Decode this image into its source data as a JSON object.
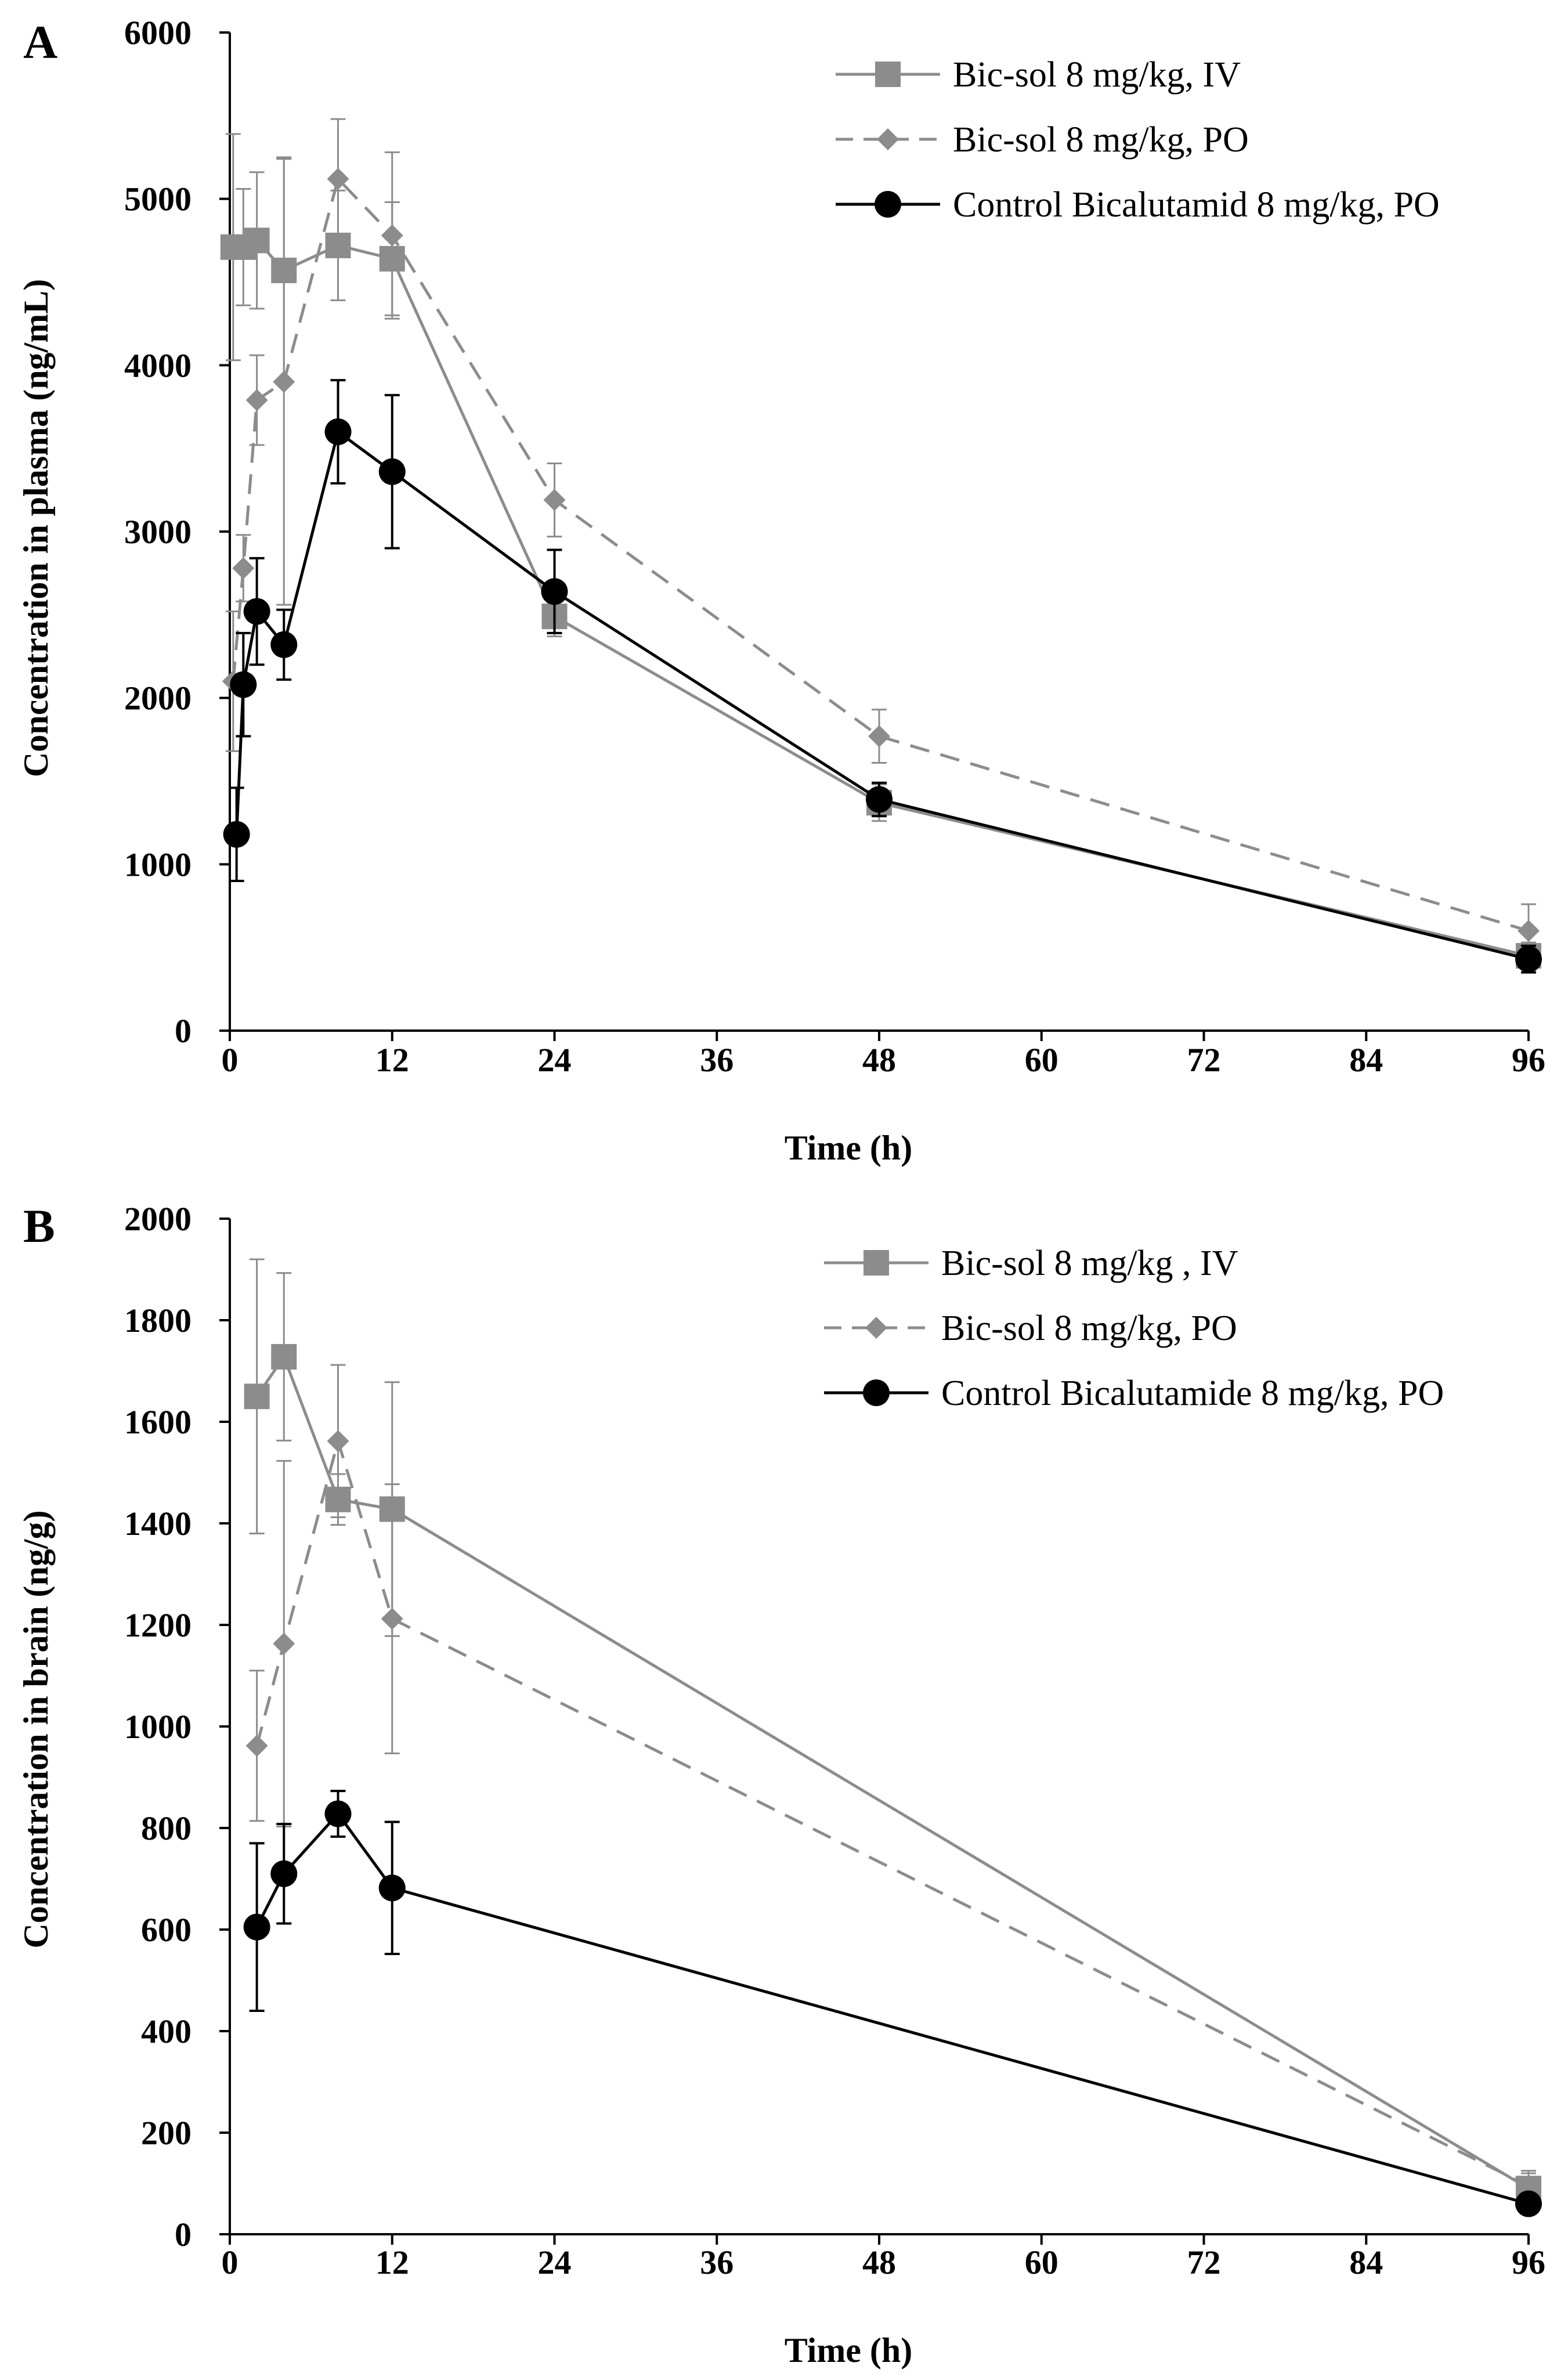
{
  "chart_data": [
    {
      "panel_label": "A",
      "type": "line",
      "xlabel": "Time (h)",
      "ylabel": "Concentration in plasma (ng/mL)",
      "xlim": [
        0,
        96
      ],
      "ylim": [
        0,
        6000
      ],
      "xticks": [
        0,
        12,
        24,
        36,
        48,
        60,
        72,
        84,
        96
      ],
      "yticks": [
        0,
        1000,
        2000,
        3000,
        4000,
        5000,
        6000
      ],
      "legend_position": "top-right",
      "series": [
        {
          "name": " Bic-sol 8 mg/kg, IV",
          "color": "#8c8c8c",
          "marker": "square",
          "dash": "solid",
          "x": [
            0.25,
            1,
            2,
            4,
            8,
            12,
            24,
            48,
            96
          ],
          "y": [
            4710,
            4710,
            4750,
            4570,
            4720,
            4640,
            2490,
            1370,
            450
          ],
          "err": [
            680,
            350,
            410,
            680,
            330,
            340,
            120,
            110,
            80
          ]
        },
        {
          "name": "Bic-sol 8 mg/kg, PO",
          "color": "#8c8c8c",
          "marker": "diamond",
          "dash": "dashed",
          "x": [
            0.25,
            1,
            2,
            4,
            8,
            12,
            24,
            48,
            96
          ],
          "y": [
            2100,
            2780,
            3790,
            3900,
            5120,
            4780,
            3190,
            1770,
            600
          ],
          "err": [
            420,
            200,
            270,
            1340,
            360,
            500,
            220,
            160,
            160
          ]
        },
        {
          "name": "Control Bicalutamid 8 mg/kg, PO",
          "color": "#000000",
          "marker": "circle",
          "dash": "solid",
          "x": [
            0.5,
            1,
            2,
            4,
            8,
            12,
            24,
            48,
            96
          ],
          "y": [
            1180,
            2080,
            2520,
            2320,
            3600,
            3360,
            2640,
            1390,
            430
          ],
          "err": [
            280,
            310,
            320,
            210,
            310,
            460,
            250,
            100,
            80
          ]
        }
      ]
    },
    {
      "panel_label": "B",
      "type": "line",
      "xlabel": "Time (h)",
      "ylabel": "Concentration in brain  (ng/g)",
      "xlim": [
        0,
        96
      ],
      "ylim": [
        0,
        2000
      ],
      "xticks": [
        0,
        12,
        24,
        36,
        48,
        60,
        72,
        84,
        96
      ],
      "yticks": [
        0,
        200,
        400,
        600,
        800,
        1000,
        1200,
        1400,
        1600,
        1800,
        2000
      ],
      "legend_position": "top-right",
      "series": [
        {
          "name": "Bic-sol 8 mg/kg , IV",
          "color": "#8c8c8c",
          "marker": "square",
          "dash": "solid",
          "x": [
            2,
            4,
            8,
            12,
            96
          ],
          "y": [
            1650,
            1728,
            1447,
            1428,
            90
          ],
          "err": [
            270,
            165,
            50,
            250,
            30
          ]
        },
        {
          "name": "Bic-sol 8 mg/kg, PO",
          "color": "#8c8c8c",
          "marker": "diamond",
          "dash": "dashed",
          "x": [
            2,
            4,
            8,
            12,
            96
          ],
          "y": [
            962,
            1163,
            1562,
            1212,
            95
          ],
          "err": [
            148,
            360,
            150,
            265,
            30
          ]
        },
        {
          "name": "Control Bicalutamide 8 mg/kg, PO",
          "color": "#000000",
          "marker": "circle",
          "dash": "solid",
          "x": [
            2,
            4,
            8,
            12,
            96
          ],
          "y": [
            605,
            710,
            828,
            682,
            60
          ],
          "err": [
            165,
            98,
            45,
            130,
            10
          ]
        }
      ]
    }
  ]
}
